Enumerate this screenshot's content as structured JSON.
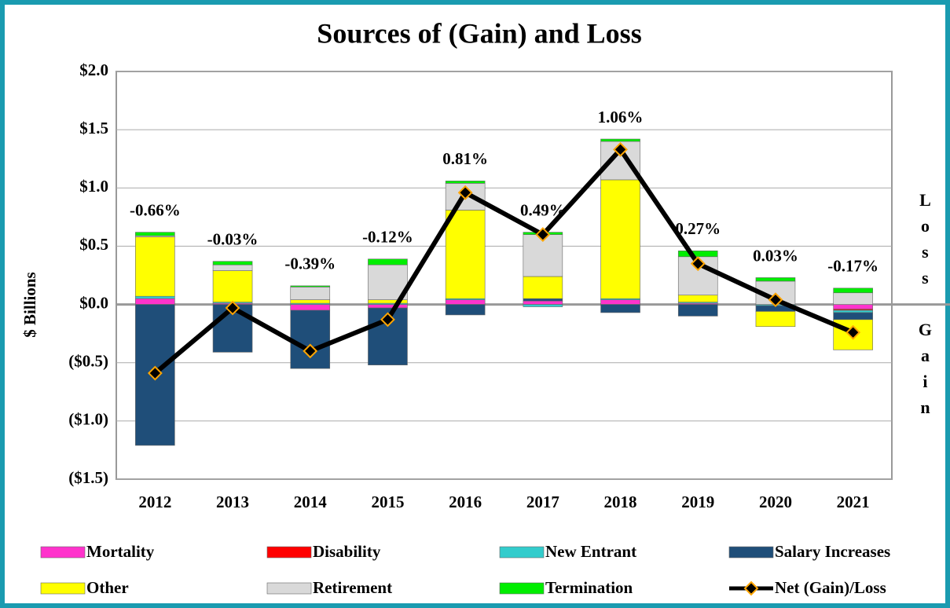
{
  "chart_data": {
    "type": "bar",
    "title": "Sources of (Gain) and Loss",
    "y_label": "$ Billions",
    "categories": [
      "2012",
      "2013",
      "2014",
      "2015",
      "2016",
      "2017",
      "2018",
      "2019",
      "2020",
      "2021"
    ],
    "series": [
      {
        "name": "Mortality",
        "color": "#ff33cc",
        "values": [
          0.05,
          0.01,
          -0.05,
          -0.03,
          0.04,
          0.03,
          0.04,
          0.01,
          0.0,
          -0.04
        ]
      },
      {
        "name": "Disability",
        "color": "#ff0000",
        "values": [
          0,
          0,
          0,
          0,
          0,
          0,
          0,
          0,
          0,
          -0.01
        ]
      },
      {
        "name": "New Entrant",
        "color": "#33cccc",
        "values": [
          0.02,
          0.01,
          0.01,
          0.01,
          0.01,
          -0.02,
          0.01,
          0.01,
          -0.01,
          -0.02
        ]
      },
      {
        "name": "Salary Increases",
        "color": "#1f4e79",
        "values": [
          -1.21,
          -0.41,
          -0.5,
          -0.49,
          -0.09,
          0.02,
          -0.07,
          -0.1,
          -0.05,
          -0.06
        ]
      },
      {
        "name": "Other",
        "color": "#ffff00",
        "values": [
          0.51,
          0.27,
          0.03,
          0.03,
          0.76,
          0.19,
          1.02,
          0.06,
          -0.13,
          -0.26
        ]
      },
      {
        "name": "Retirement",
        "color": "#d9d9d9",
        "values": [
          0.01,
          0.05,
          0.11,
          0.3,
          0.23,
          0.36,
          0.33,
          0.33,
          0.2,
          0.1
        ]
      },
      {
        "name": "Termination",
        "color": "#00ee00",
        "values": [
          0.03,
          0.03,
          0.01,
          0.05,
          0.02,
          0.02,
          0.02,
          0.05,
          0.03,
          0.04
        ]
      },
      {
        "name": "Net (Gain)/Loss",
        "type": "line",
        "color": "#000000",
        "marker_color": "#ffa500",
        "values": [
          -0.59,
          -0.03,
          -0.4,
          -0.13,
          0.96,
          0.6,
          1.33,
          0.35,
          0.04,
          -0.24
        ]
      }
    ],
    "annotations": [
      "-0.66%",
      "-0.03%",
      "-0.39%",
      "-0.12%",
      "0.81%",
      "0.49%",
      "1.06%",
      "0.27%",
      "0.03%",
      "-0.17%"
    ],
    "side_labels": [
      "Loss",
      "Gain"
    ],
    "ylim": [
      -1.5,
      2.0
    ],
    "yticks": [
      {
        "value": -1.5,
        "label": "($1.5)"
      },
      {
        "value": -1.0,
        "label": "($1.0)"
      },
      {
        "value": -0.5,
        "label": "($0.5)"
      },
      {
        "value": 0,
        "label": "$0.0"
      },
      {
        "value": 0.5,
        "label": "$0.5"
      },
      {
        "value": 1.0,
        "label": "$1.0"
      },
      {
        "value": 1.5,
        "label": "$1.5"
      },
      {
        "value": 2.0,
        "label": "$2.0"
      }
    ],
    "grid": true
  }
}
